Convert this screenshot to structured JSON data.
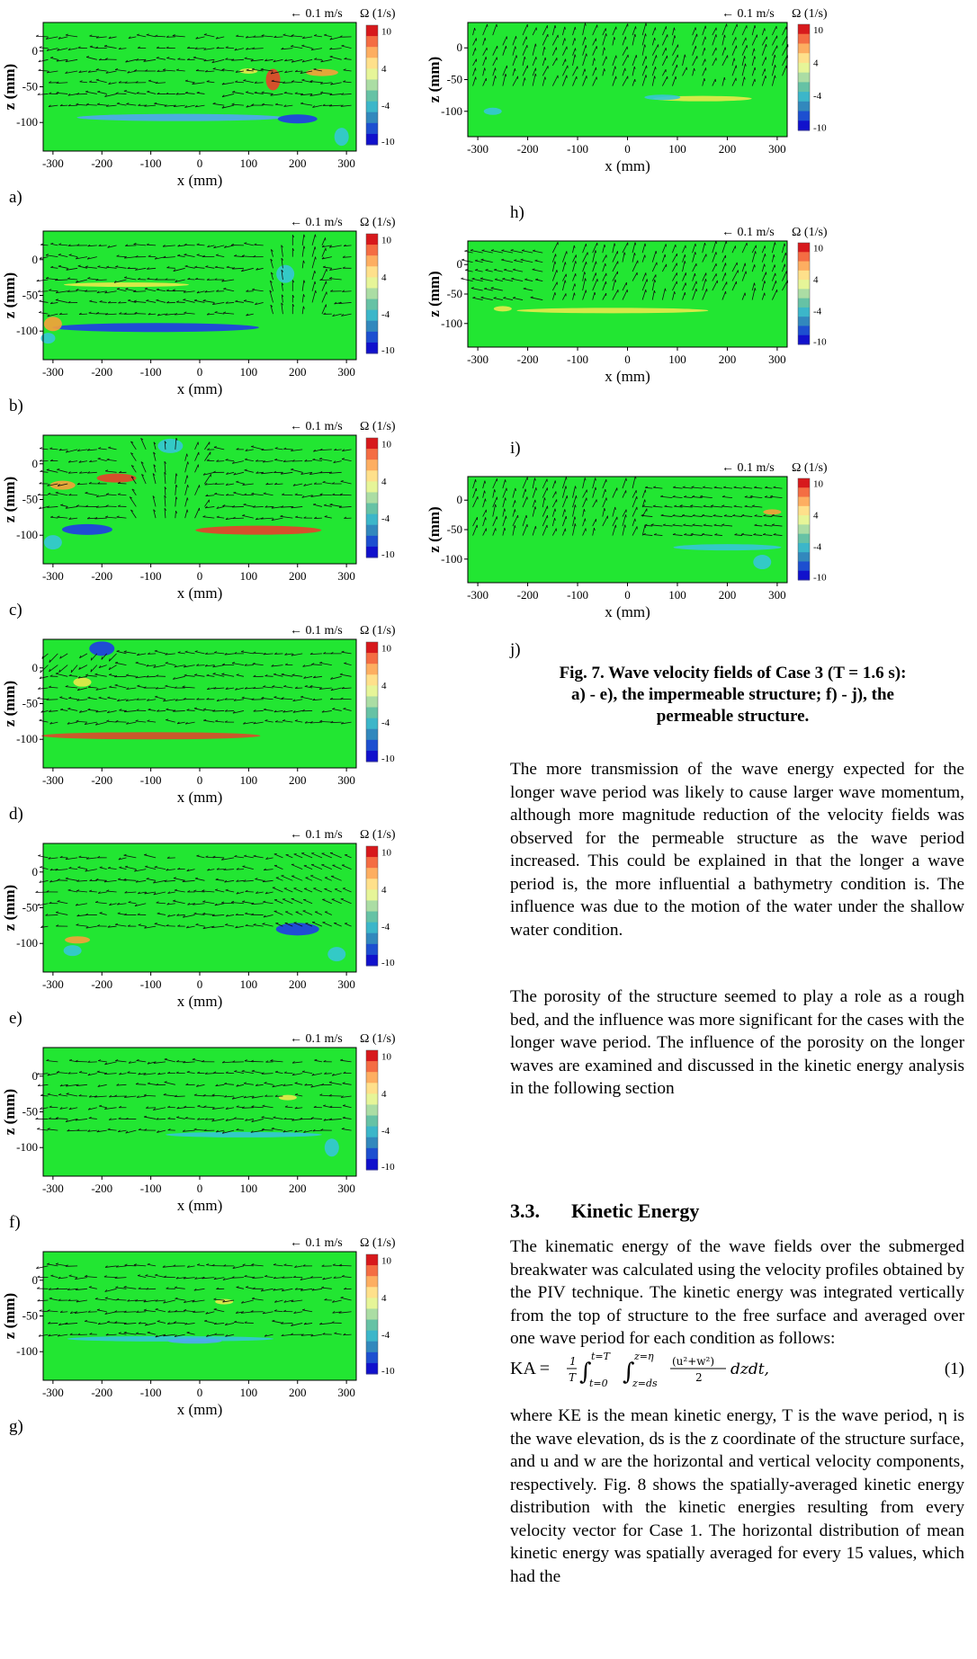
{
  "figure": {
    "scale_label": "← 0.1 m/s",
    "colorbar_title": "Ω (1/s)",
    "colorbar_ticks": [
      "10",
      "4",
      "-4",
      "-10"
    ],
    "x_axis_title": "x (mm)",
    "y_axis_title": "z (mm)",
    "x_ticks": [
      "-300",
      "-200",
      "-100",
      "0",
      "100",
      "200",
      "300"
    ],
    "y_ticks": [
      "0",
      "-50",
      "-100"
    ],
    "panels": [
      {
        "label": "a)"
      },
      {
        "label": "b)"
      },
      {
        "label": "c)"
      },
      {
        "label": "d)"
      },
      {
        "label": "e)"
      },
      {
        "label": "f)"
      },
      {
        "label": "g)"
      },
      {
        "label": "h)"
      },
      {
        "label": "i)"
      },
      {
        "label": "j)"
      }
    ],
    "colorbar_colors": [
      "#d7191c",
      "#f46d43",
      "#fdae61",
      "#fee08b",
      "#e6f598",
      "#abdda4",
      "#66c2a5",
      "#3cb6c9",
      "#3288bd",
      "#1d4fd0",
      "#1111cc"
    ],
    "field_color": "#22e632"
  },
  "caption": {
    "line1": "Fig. 7. Wave velocity fields of Case 3 (T = 1.6 s):",
    "line2": "a) - e), the impermeable structure; f) - j), the",
    "line3": "permeable structure."
  },
  "paragraphs": [
    "The more transmission of the wave energy expected for the longer wave period was likely to cause larger wave momentum, although more magnitude reduction of the velocity fields was observed for the permeable structure as the wave period increased. This could be explained in that the longer a wave period is, the more influential a bathymetry condition is. The influence was due to the motion of the water under the shallow water condition.",
    "The porosity of the structure seemed to play a role as a rough bed, and the influence was more significant for the cases with the longer wave period. The influence of the porosity on the longer waves are examined and discussed in the kinetic energy analysis in the following section"
  ],
  "section": {
    "number": "3.3.",
    "title": "Kinetic Energy"
  },
  "paragraph3": "The kinematic energy of the wave fields over the submerged breakwater was calculated using the velocity profiles obtained by the PIV technique. The kinetic energy was integrated vertically from the top of structure to the free surface and averaged over one wave period for each condition as follows:",
  "equation": {
    "lhs": "KA = ",
    "frac_num": "1",
    "frac_den": "T",
    "int1_upper": "t=T",
    "int1_lower": "t=0",
    "int2_upper": "z=η",
    "int2_lower": "z=ds",
    "integrand_num": "(u²+w²)",
    "integrand_den": "2",
    "tail": "dzdt,",
    "number": "(1)"
  },
  "paragraph4": "where KE is the mean kinetic energy, T is the wave period, η is the wave elevation, ds is the z coordinate of the structure surface, and u and w are the horizontal and vertical velocity components, respectively. Fig. 8 shows the spatially-averaged kinetic energy distribution with the kinetic energies resulting from every velocity vector for Case 1. The horizontal distribution of mean kinetic energy was spatially averaged for every 15 values, which had the"
}
